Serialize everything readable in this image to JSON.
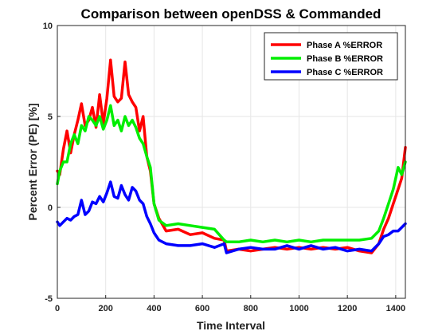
{
  "chart_data": {
    "type": "line",
    "title": "Comparison between openDSS & Commanded",
    "xlabel": "Time Interval",
    "ylabel": "Percent Error (PE) [%]",
    "xlim": [
      0,
      1440
    ],
    "ylim": [
      -5,
      10
    ],
    "xticks": [
      0,
      200,
      400,
      600,
      800,
      1000,
      1200,
      1400
    ],
    "yticks": [
      -5,
      0,
      5,
      10
    ],
    "grid": true,
    "legend_position": "top-right",
    "series": [
      {
        "name": "Phase A %ERROR",
        "color": "#ff0000",
        "x": [
          0,
          10,
          25,
          40,
          55,
          70,
          85,
          100,
          115,
          130,
          145,
          160,
          175,
          190,
          205,
          220,
          235,
          250,
          265,
          280,
          295,
          310,
          325,
          340,
          355,
          370,
          385,
          400,
          420,
          450,
          500,
          550,
          600,
          650,
          690,
          700,
          750,
          800,
          850,
          900,
          950,
          1000,
          1050,
          1100,
          1150,
          1200,
          1250,
          1300,
          1330,
          1350,
          1370,
          1390,
          1410,
          1425,
          1440
        ],
        "y": [
          2.0,
          1.8,
          3.2,
          4.2,
          3.0,
          4.0,
          4.8,
          5.7,
          4.5,
          4.8,
          5.5,
          4.4,
          6.2,
          4.6,
          6.0,
          8.1,
          6.1,
          5.8,
          6.0,
          8.0,
          6.2,
          5.8,
          5.5,
          4.2,
          5.0,
          2.8,
          2.0,
          0.2,
          -0.6,
          -1.3,
          -1.2,
          -1.5,
          -1.4,
          -1.7,
          -1.8,
          -2.4,
          -2.3,
          -2.4,
          -2.3,
          -2.2,
          -2.3,
          -2.2,
          -2.3,
          -2.2,
          -2.3,
          -2.2,
          -2.4,
          -2.5,
          -2.0,
          -1.2,
          -0.6,
          0.2,
          1.0,
          1.6,
          3.3
        ]
      },
      {
        "name": "Phase B %ERROR",
        "color": "#00ee00",
        "x": [
          0,
          10,
          25,
          40,
          55,
          70,
          85,
          100,
          115,
          130,
          145,
          160,
          175,
          190,
          205,
          220,
          235,
          250,
          265,
          280,
          295,
          310,
          325,
          340,
          355,
          370,
          385,
          400,
          420,
          450,
          500,
          550,
          600,
          650,
          690,
          700,
          750,
          800,
          850,
          900,
          950,
          1000,
          1050,
          1100,
          1150,
          1200,
          1250,
          1300,
          1330,
          1350,
          1370,
          1390,
          1410,
          1425,
          1440
        ],
        "y": [
          1.3,
          2.0,
          2.5,
          2.5,
          3.5,
          4.0,
          3.5,
          4.5,
          4.2,
          5.0,
          4.8,
          4.5,
          5.0,
          4.3,
          4.8,
          5.6,
          4.5,
          4.8,
          4.2,
          5.0,
          4.5,
          4.8,
          4.4,
          3.8,
          3.5,
          2.8,
          2.2,
          0.2,
          -0.7,
          -1.0,
          -0.9,
          -1.0,
          -1.1,
          -1.2,
          -1.8,
          -1.9,
          -1.9,
          -1.8,
          -1.9,
          -1.8,
          -1.9,
          -1.8,
          -1.9,
          -1.8,
          -1.8,
          -1.8,
          -1.8,
          -1.7,
          -1.3,
          -0.6,
          0.2,
          1.0,
          2.2,
          1.8,
          2.5
        ]
      },
      {
        "name": "Phase C %ERROR",
        "color": "#0000ff",
        "x": [
          0,
          10,
          25,
          40,
          55,
          70,
          85,
          100,
          115,
          130,
          145,
          160,
          175,
          190,
          205,
          220,
          235,
          250,
          265,
          280,
          295,
          310,
          325,
          340,
          355,
          370,
          385,
          400,
          420,
          450,
          500,
          550,
          600,
          650,
          690,
          700,
          750,
          800,
          850,
          900,
          950,
          1000,
          1050,
          1100,
          1150,
          1200,
          1250,
          1300,
          1330,
          1350,
          1370,
          1390,
          1410,
          1425,
          1440
        ],
        "y": [
          -0.8,
          -1.0,
          -0.8,
          -0.6,
          -0.7,
          -0.5,
          -0.4,
          0.4,
          -0.4,
          -0.2,
          0.3,
          0.2,
          0.6,
          0.3,
          0.8,
          1.4,
          0.6,
          0.5,
          1.2,
          0.7,
          0.4,
          1.1,
          0.9,
          0.4,
          0.2,
          -0.5,
          -0.9,
          -1.4,
          -1.8,
          -2.0,
          -2.1,
          -2.1,
          -2.0,
          -2.2,
          -2.0,
          -2.5,
          -2.3,
          -2.2,
          -2.3,
          -2.3,
          -2.1,
          -2.3,
          -2.1,
          -2.3,
          -2.2,
          -2.4,
          -2.3,
          -2.4,
          -2.0,
          -1.6,
          -1.5,
          -1.3,
          -1.3,
          -1.1,
          -0.9
        ]
      }
    ]
  }
}
